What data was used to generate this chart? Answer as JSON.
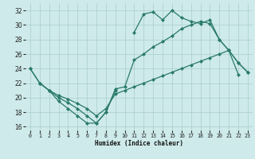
{
  "xlabel": "Humidex (Indice chaleur)",
  "bg_color": "#ceeaea",
  "grid_color": "#aacccc",
  "line_color": "#2a7a6a",
  "xlim": [
    -0.5,
    23.5
  ],
  "ylim": [
    15.5,
    33.0
  ],
  "yticks": [
    16,
    18,
    20,
    22,
    24,
    26,
    28,
    30,
    32
  ],
  "xticks": [
    0,
    1,
    2,
    3,
    4,
    5,
    6,
    7,
    8,
    9,
    10,
    11,
    12,
    13,
    14,
    15,
    16,
    17,
    18,
    19,
    20,
    21,
    22,
    23
  ],
  "line1_x": [
    0,
    1,
    2,
    3,
    4,
    5,
    6,
    7,
    8,
    9
  ],
  "line1_y": [
    24.0,
    22.0,
    21.0,
    19.5,
    18.5,
    17.5,
    16.5,
    16.5,
    18.0,
    21.0
  ],
  "line2_x": [
    11,
    12,
    13,
    14,
    15,
    16,
    17,
    18,
    19,
    20,
    21,
    22,
    23
  ],
  "line2_y": [
    29.0,
    31.5,
    31.8,
    30.7,
    32.0,
    31.0,
    30.5,
    30.2,
    30.7,
    28.0,
    26.5,
    24.8,
    23.5
  ],
  "line3_x": [
    0,
    1,
    2,
    3,
    4,
    5,
    6,
    7,
    8,
    9,
    10,
    11,
    12,
    13,
    14,
    15,
    16,
    17,
    18,
    19,
    20,
    21,
    22,
    23
  ],
  "line3_y": [
    24.0,
    22.0,
    21.0,
    20.0,
    19.3,
    18.5,
    17.5,
    16.5,
    18.0,
    21.2,
    21.5,
    25.2,
    26.0,
    27.0,
    27.7,
    28.5,
    29.5,
    30.0,
    30.5,
    30.2,
    28.0,
    26.5,
    24.8,
    23.5
  ],
  "line4_x": [
    1,
    2,
    3,
    4,
    5,
    6,
    7,
    8,
    9,
    10,
    11,
    12,
    13,
    14,
    15,
    16,
    17,
    18,
    19,
    20,
    21,
    22
  ],
  "line4_y": [
    22.0,
    21.0,
    20.3,
    19.8,
    19.2,
    18.5,
    17.5,
    18.5,
    20.5,
    21.0,
    21.5,
    22.0,
    22.5,
    23.0,
    23.5,
    24.0,
    24.5,
    25.0,
    25.5,
    26.0,
    26.5,
    23.2
  ]
}
